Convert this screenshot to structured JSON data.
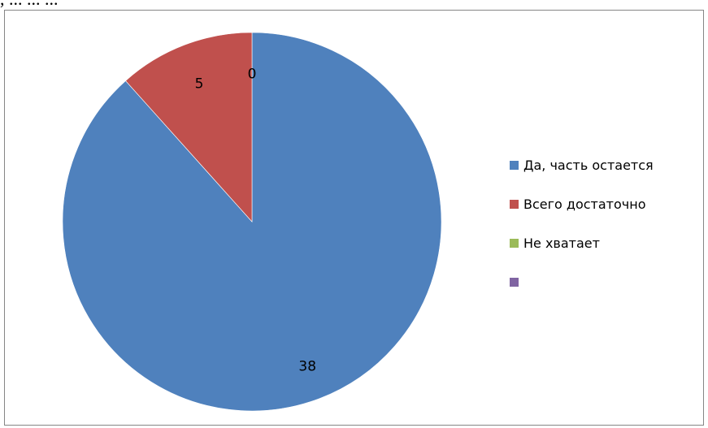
{
  "page": {
    "top_text": ", ... ... ..."
  },
  "chart_data": {
    "type": "pie",
    "title": "",
    "series": [
      {
        "values": [
          38,
          5,
          0,
          0
        ]
      }
    ],
    "categories": [
      "Да, часть остается",
      "Всего достаточно",
      "Не хватает",
      ""
    ],
    "data_labels": [
      "38",
      "5",
      "0",
      ""
    ],
    "colors": [
      "#4F81BD",
      "#C0504D",
      "#9BBB59",
      "#8064A2"
    ],
    "legend_position": "right",
    "start_angle_deg": 0,
    "direction": "clockwise"
  }
}
